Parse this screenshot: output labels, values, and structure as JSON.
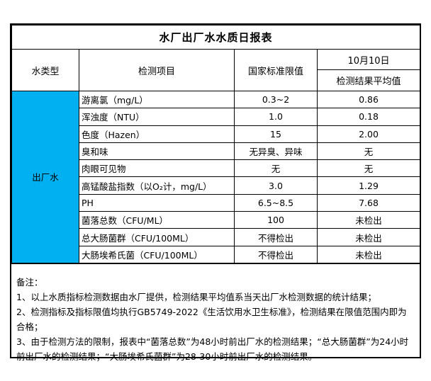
{
  "title": "水厂出厂水水质日报表",
  "table": {
    "headers": {
      "water_type": "水类型",
      "item": "检测项目",
      "standard": "国家标准限值",
      "date": "10月10日",
      "result_avg": "检测结果平均值"
    },
    "water_type_value": "出厂水",
    "rows": [
      {
        "item": "游离氯（mg/L）",
        "standard": "0.3~2",
        "result": "0.86"
      },
      {
        "item": "浑浊度（NTU）",
        "standard": "1.0",
        "result": "0.18"
      },
      {
        "item": "色度（Hazen）",
        "standard": "15",
        "result": "2.00"
      },
      {
        "item": "臭和味",
        "standard": "无异臭、异味",
        "result": "无"
      },
      {
        "item": "肉眼可见物",
        "standard": "无",
        "result": "无"
      },
      {
        "item": "高锰酸盐指数（以O₂计，mg/L）",
        "standard": "3.0",
        "result": "1.29"
      },
      {
        "item": "PH",
        "standard": "6.5~8.5",
        "result": "7.68"
      },
      {
        "item": "菌落总数（CFU/ML）",
        "standard": "100",
        "result": "未检出"
      },
      {
        "item": "总大肠菌群（CFU/100ML）",
        "standard": "不得检出",
        "result": "未检出"
      },
      {
        "item": "大肠埃希氏菌（CFU/100ML）",
        "standard": "不得检出",
        "result": "未检出"
      }
    ]
  },
  "notes": {
    "label": "备注：",
    "lines": [
      "1、以上水质指标检测数据由水厂提供，检测结果平均值系当天出厂水检测数据的统计结果；",
      "2、检测指标及指标限值均执行GB5749-2022《生活饮用水卫生标准》，检测结果在限值范围内即为合格；",
      "3、由于检测方法的限制，报表中“菌落总数”为48小时前出厂水的检测结果；“总大肠菌群”为24小时前出厂水的检测结果；“大肠埃希氏菌群”为28-30小时前出厂水的检测结果。"
    ]
  },
  "colors": {
    "water_type_bg": "#00B0F0",
    "border": "#000000",
    "background": "#FFFFFF"
  }
}
